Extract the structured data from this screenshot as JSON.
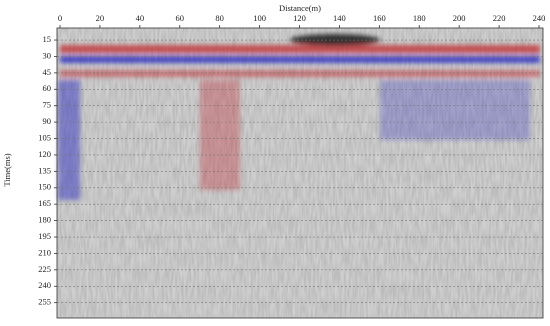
{
  "chart_data": {
    "type": "wiggle",
    "x_label": "Distance(m)",
    "y_label": "Time(ms)",
    "xlim": [
      -1.5,
      242
    ],
    "xticks": [
      0,
      20,
      40,
      60,
      80,
      100,
      120,
      140,
      160,
      180,
      200,
      220,
      240
    ],
    "ylim": [
      4,
      269
    ],
    "yticks": [
      15,
      30,
      45,
      60,
      75,
      90,
      105,
      120,
      135,
      150,
      165,
      180,
      195,
      210,
      225,
      240,
      255
    ],
    "y_inverted": true,
    "x_axis_top": true,
    "grid": true
  }
}
